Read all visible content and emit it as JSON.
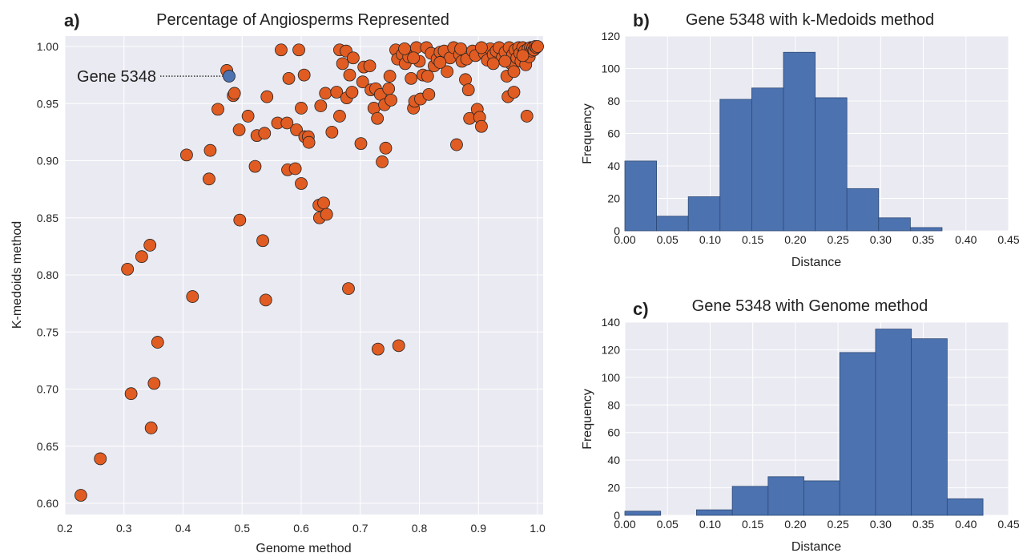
{
  "chart_data": [
    {
      "panel": "a",
      "type": "scatter",
      "title": "Percentage of Angiosperms Represented",
      "xlabel": "Genome method",
      "ylabel": "K-medoids method",
      "xlim": [
        0.2,
        1.0
      ],
      "ylim": [
        0.59,
        1.0
      ],
      "xticks": [
        "0.2",
        "0.3",
        "0.4",
        "0.5",
        "0.6",
        "0.7",
        "0.8",
        "0.9",
        "1.0"
      ],
      "yticks": [
        "0.60",
        "0.65",
        "0.70",
        "0.75",
        "0.80",
        "0.85",
        "0.90",
        "0.95",
        "1.00"
      ],
      "grid": true,
      "point_color": "#e05c22",
      "highlight_color": "#4c72b0",
      "highlight": {
        "label": "Gene 5348",
        "x": 0.478,
        "y": 0.974
      },
      "points": [
        [
          0.227,
          0.607
        ],
        [
          0.26,
          0.639
        ],
        [
          0.306,
          0.805
        ],
        [
          0.312,
          0.696
        ],
        [
          0.33,
          0.816
        ],
        [
          0.344,
          0.826
        ],
        [
          0.346,
          0.666
        ],
        [
          0.351,
          0.705
        ],
        [
          0.357,
          0.741
        ],
        [
          0.406,
          0.905
        ],
        [
          0.416,
          0.781
        ],
        [
          0.444,
          0.884
        ],
        [
          0.446,
          0.909
        ],
        [
          0.459,
          0.945
        ],
        [
          0.474,
          0.979
        ],
        [
          0.485,
          0.957
        ],
        [
          0.487,
          0.959
        ],
        [
          0.495,
          0.927
        ],
        [
          0.496,
          0.848
        ],
        [
          0.51,
          0.939
        ],
        [
          0.522,
          0.895
        ],
        [
          0.525,
          0.922
        ],
        [
          0.535,
          0.83
        ],
        [
          0.538,
          0.924
        ],
        [
          0.54,
          0.778
        ],
        [
          0.542,
          0.956
        ],
        [
          0.56,
          0.933
        ],
        [
          0.566,
          0.997
        ],
        [
          0.576,
          0.933
        ],
        [
          0.577,
          0.892
        ],
        [
          0.579,
          0.972
        ],
        [
          0.59,
          0.893
        ],
        [
          0.592,
          0.927
        ],
        [
          0.596,
          0.997
        ],
        [
          0.6,
          0.946
        ],
        [
          0.6,
          0.88
        ],
        [
          0.605,
          0.975
        ],
        [
          0.606,
          0.921
        ],
        [
          0.612,
          0.921
        ],
        [
          0.613,
          0.916
        ],
        [
          0.63,
          0.861
        ],
        [
          0.631,
          0.85
        ],
        [
          0.633,
          0.948
        ],
        [
          0.638,
          0.863
        ],
        [
          0.641,
          0.959
        ],
        [
          0.643,
          0.853
        ],
        [
          0.652,
          0.925
        ],
        [
          0.66,
          0.96
        ],
        [
          0.665,
          0.997
        ],
        [
          0.665,
          0.939
        ],
        [
          0.67,
          0.985
        ],
        [
          0.676,
          0.996
        ],
        [
          0.677,
          0.955
        ],
        [
          0.68,
          0.788
        ],
        [
          0.682,
          0.975
        ],
        [
          0.686,
          0.96
        ],
        [
          0.688,
          0.99
        ],
        [
          0.701,
          0.915
        ],
        [
          0.704,
          0.969
        ],
        [
          0.706,
          0.982
        ],
        [
          0.716,
          0.983
        ],
        [
          0.718,
          0.962
        ],
        [
          0.723,
          0.946
        ],
        [
          0.726,
          0.963
        ],
        [
          0.729,
          0.937
        ],
        [
          0.73,
          0.735
        ],
        [
          0.734,
          0.958
        ],
        [
          0.737,
          0.899
        ],
        [
          0.741,
          0.949
        ],
        [
          0.743,
          0.911
        ],
        [
          0.748,
          0.963
        ],
        [
          0.75,
          0.974
        ],
        [
          0.752,
          0.953
        ],
        [
          0.76,
          0.997
        ],
        [
          0.763,
          0.989
        ],
        [
          0.765,
          0.738
        ],
        [
          0.771,
          0.993
        ],
        [
          0.776,
          0.985
        ],
        [
          0.782,
          0.991
        ],
        [
          0.786,
          0.972
        ],
        [
          0.79,
          0.946
        ],
        [
          0.792,
          0.952
        ],
        [
          0.795,
          0.999
        ],
        [
          0.8,
          0.987
        ],
        [
          0.802,
          0.954
        ],
        [
          0.806,
          0.975
        ],
        [
          0.812,
          0.999
        ],
        [
          0.814,
          0.974
        ],
        [
          0.816,
          0.958
        ],
        [
          0.82,
          0.994
        ],
        [
          0.825,
          0.983
        ],
        [
          0.83,
          0.989
        ],
        [
          0.835,
          0.995
        ],
        [
          0.842,
          0.996
        ],
        [
          0.847,
          0.978
        ],
        [
          0.852,
          0.99
        ],
        [
          0.858,
          0.999
        ],
        [
          0.863,
          0.914
        ],
        [
          0.868,
          0.993
        ],
        [
          0.872,
          0.987
        ],
        [
          0.878,
          0.971
        ],
        [
          0.88,
          0.989
        ],
        [
          0.883,
          0.962
        ],
        [
          0.885,
          0.937
        ],
        [
          0.89,
          0.996
        ],
        [
          0.895,
          0.992
        ],
        [
          0.898,
          0.945
        ],
        [
          0.902,
          0.938
        ],
        [
          0.905,
          0.93
        ],
        [
          0.91,
          0.994
        ],
        [
          0.915,
          0.988
        ],
        [
          0.92,
          0.998
        ],
        [
          0.925,
          0.993
        ],
        [
          0.93,
          0.996
        ],
        [
          0.935,
          0.999
        ],
        [
          0.94,
          0.99
        ],
        [
          0.945,
          0.995
        ],
        [
          0.948,
          0.974
        ],
        [
          0.95,
          0.956
        ],
        [
          0.952,
          0.999
        ],
        [
          0.955,
          0.985
        ],
        [
          0.958,
          0.993
        ],
        [
          0.96,
          0.96
        ],
        [
          0.962,
          0.997
        ],
        [
          0.965,
          0.99
        ],
        [
          0.968,
          0.999
        ],
        [
          0.97,
          0.994
        ],
        [
          0.972,
          0.987
        ],
        [
          0.975,
          0.999
        ],
        [
          0.978,
          0.996
        ],
        [
          0.98,
          0.984
        ],
        [
          0.982,
          0.939
        ],
        [
          0.984,
          0.998
        ],
        [
          0.986,
          0.991
        ],
        [
          0.988,
          0.999
        ],
        [
          0.99,
          0.996
        ],
        [
          0.992,
          0.999
        ],
        [
          0.994,
          0.997
        ],
        [
          0.996,
          1.0
        ],
        [
          0.998,
          0.999
        ],
        [
          1.0,
          1.0
        ],
        [
          0.775,
          0.998
        ],
        [
          0.79,
          0.99
        ],
        [
          0.835,
          0.986
        ],
        [
          0.87,
          0.998
        ],
        [
          0.905,
          0.999
        ],
        [
          0.925,
          0.985
        ],
        [
          0.945,
          0.987
        ],
        [
          0.96,
          0.978
        ],
        [
          0.975,
          0.992
        ]
      ]
    },
    {
      "panel": "b",
      "type": "bar",
      "title": "Gene 5348 with k-Medoids method",
      "xlabel": "Distance",
      "ylabel": "Frequency",
      "xlim": [
        0.0,
        0.45
      ],
      "ylim": [
        0,
        120
      ],
      "xticks": [
        "0.00",
        "0.05",
        "0.10",
        "0.15",
        "0.20",
        "0.25",
        "0.30",
        "0.35",
        "0.40",
        "0.45"
      ],
      "yticks": [
        "0",
        "20",
        "40",
        "60",
        "80",
        "100",
        "120"
      ],
      "bar_color": "#4c72b0",
      "bin_edges": [
        0.0,
        0.0372,
        0.0744,
        0.1116,
        0.1488,
        0.186,
        0.2232,
        0.2604,
        0.2976,
        0.3348,
        0.372
      ],
      "values": [
        43,
        9,
        21,
        81,
        88,
        110,
        82,
        26,
        8,
        2
      ]
    },
    {
      "panel": "c",
      "type": "bar",
      "title": "Gene 5348 with Genome method",
      "xlabel": "Distance",
      "ylabel": "Frequency",
      "xlim": [
        0.0,
        0.45
      ],
      "ylim": [
        0,
        140
      ],
      "xticks": [
        "0.00",
        "0.05",
        "0.10",
        "0.15",
        "0.20",
        "0.25",
        "0.30",
        "0.35",
        "0.40",
        "0.45"
      ],
      "yticks": [
        "0",
        "20",
        "40",
        "60",
        "80",
        "100",
        "120",
        "140"
      ],
      "bar_color": "#4c72b0",
      "bin_edges": [
        0.0,
        0.042,
        0.084,
        0.126,
        0.168,
        0.21,
        0.252,
        0.294,
        0.336,
        0.378,
        0.42
      ],
      "values": [
        3,
        0,
        4,
        21,
        28,
        25,
        118,
        135,
        128,
        12
      ]
    }
  ]
}
